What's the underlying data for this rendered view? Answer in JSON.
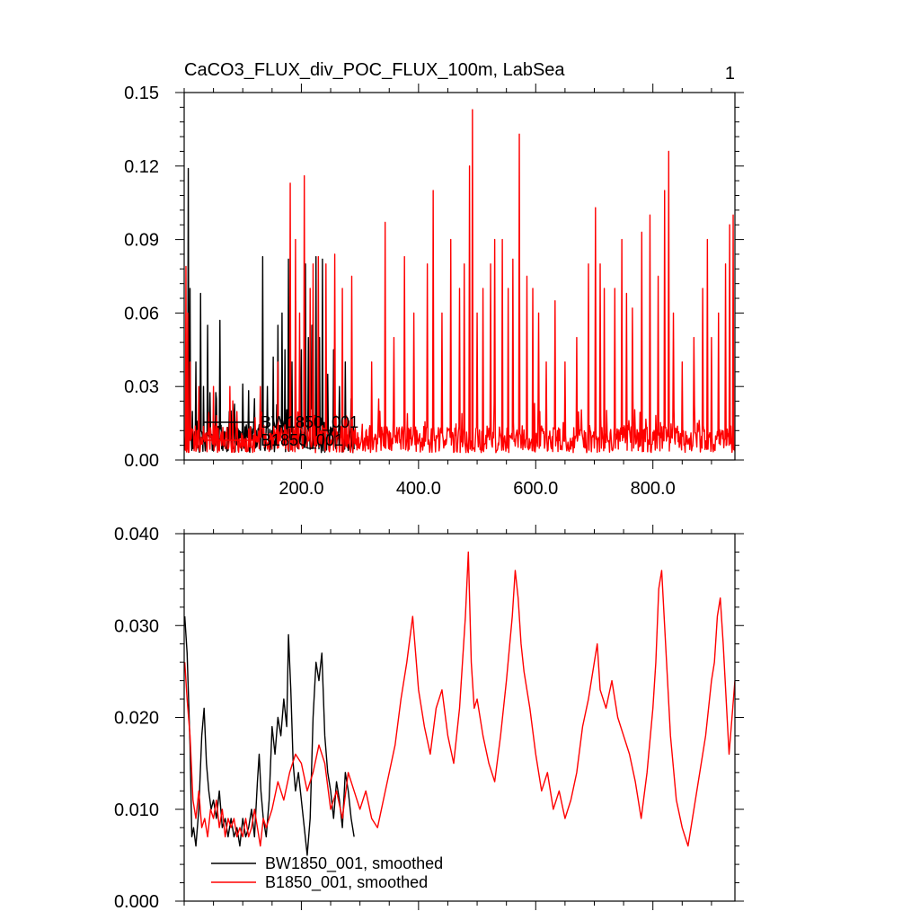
{
  "chart_data": [
    {
      "type": "line",
      "title": "CaCO3_FLUX_div_POC_FLUX_100m, LabSea",
      "page_number": "1",
      "xlim": [
        0,
        940
      ],
      "ylim": [
        0,
        0.15
      ],
      "x_ticks": [
        200,
        400,
        600,
        800
      ],
      "x_tick_labels": [
        "200.0",
        "400.0",
        "600.0",
        "800.0"
      ],
      "y_ticks": [
        0,
        0.03,
        0.06,
        0.09,
        0.12,
        0.15
      ],
      "y_tick_labels": [
        "0.00",
        "0.03",
        "0.06",
        "0.09",
        "0.12",
        "0.15"
      ],
      "legend_position": "lower-left",
      "grid": false,
      "series": [
        {
          "name": "BW1850_001",
          "color": "#000000",
          "x_range": [
            1,
            290
          ],
          "baseline": 0.008,
          "noise": 0.006,
          "peaks": [
            [
              7,
              0.119
            ],
            [
              10,
              0.07
            ],
            [
              20,
              0.04
            ],
            [
              28,
              0.068
            ],
            [
              33,
              0.03
            ],
            [
              40,
              0.055
            ],
            [
              55,
              0.025
            ],
            [
              61,
              0.057
            ],
            [
              80,
              0.02
            ],
            [
              100,
              0.031
            ],
            [
              120,
              0.025
            ],
            [
              134,
              0.083
            ],
            [
              142,
              0.03
            ],
            [
              152,
              0.042
            ],
            [
              160,
              0.055
            ],
            [
              167,
              0.06
            ],
            [
              172,
              0.045
            ],
            [
              178,
              0.082
            ],
            [
              184,
              0.04
            ],
            [
              190,
              0.065
            ],
            [
              200,
              0.045
            ],
            [
              207,
              0.08
            ],
            [
              212,
              0.05
            ],
            [
              218,
              0.055
            ],
            [
              225,
              0.083
            ],
            [
              231,
              0.05
            ],
            [
              236,
              0.082
            ],
            [
              245,
              0.035
            ],
            [
              255,
              0.045
            ],
            [
              265,
              0.03
            ],
            [
              275,
              0.04
            ],
            [
              285,
              0.025
            ]
          ]
        },
        {
          "name": "B1850_001",
          "color": "#ff0000",
          "x_range": [
            1,
            940
          ],
          "baseline": 0.0075,
          "noise": 0.006,
          "peaks": [
            [
              3,
              0.079
            ],
            [
              6,
              0.06
            ],
            [
              10,
              0.04
            ],
            [
              25,
              0.03
            ],
            [
              50,
              0.03
            ],
            [
              78,
              0.03
            ],
            [
              130,
              0.03
            ],
            [
              160,
              0.04
            ],
            [
              181,
              0.113
            ],
            [
              190,
              0.09
            ],
            [
              197,
              0.06
            ],
            [
              205,
              0.116
            ],
            [
              215,
              0.07
            ],
            [
              220,
              0.08
            ],
            [
              229,
              0.083
            ],
            [
              242,
              0.08
            ],
            [
              257,
              0.084
            ],
            [
              270,
              0.07
            ],
            [
              286,
              0.075
            ],
            [
              320,
              0.04
            ],
            [
              343,
              0.097
            ],
            [
              358,
              0.05
            ],
            [
              376,
              0.083
            ],
            [
              392,
              0.06
            ],
            [
              415,
              0.08
            ],
            [
              425,
              0.11
            ],
            [
              440,
              0.06
            ],
            [
              455,
              0.09
            ],
            [
              470,
              0.07
            ],
            [
              478,
              0.08
            ],
            [
              487,
              0.12
            ],
            [
              492,
              0.143
            ],
            [
              500,
              0.06
            ],
            [
              510,
              0.07
            ],
            [
              523,
              0.08
            ],
            [
              530,
              0.09
            ],
            [
              543,
              0.09
            ],
            [
              553,
              0.07
            ],
            [
              561,
              0.082
            ],
            [
              572,
              0.133
            ],
            [
              585,
              0.075
            ],
            [
              595,
              0.07
            ],
            [
              605,
              0.06
            ],
            [
              618,
              0.04
            ],
            [
              633,
              0.065
            ],
            [
              650,
              0.04
            ],
            [
              670,
              0.05
            ],
            [
              690,
              0.08
            ],
            [
              702,
              0.103
            ],
            [
              710,
              0.08
            ],
            [
              717,
              0.07
            ],
            [
              735,
              0.07
            ],
            [
              747,
              0.09
            ],
            [
              755,
              0.068
            ],
            [
              765,
              0.062
            ],
            [
              781,
              0.093
            ],
            [
              795,
              0.1
            ],
            [
              809,
              0.075
            ],
            [
              820,
              0.11
            ],
            [
              827,
              0.126
            ],
            [
              835,
              0.06
            ],
            [
              850,
              0.04
            ],
            [
              870,
              0.05
            ],
            [
              885,
              0.07
            ],
            [
              893,
              0.09
            ],
            [
              900,
              0.05
            ],
            [
              912,
              0.06
            ],
            [
              924,
              0.08
            ],
            [
              931,
              0.096
            ],
            [
              937,
              0.1
            ]
          ]
        }
      ]
    },
    {
      "type": "line",
      "xlim": [
        0,
        940
      ],
      "ylim": [
        0,
        0.04
      ],
      "x_ticks": [
        200,
        400,
        600,
        800
      ],
      "y_ticks": [
        0,
        0.01,
        0.02,
        0.03,
        0.04
      ],
      "y_tick_labels": [
        "0.000",
        "0.010",
        "0.020",
        "0.030",
        "0.040"
      ],
      "legend_position": "lower-left",
      "grid": false,
      "series": [
        {
          "name": "BW1850_001, smoothed",
          "color": "#000000",
          "x": [
            1,
            5,
            10,
            13,
            16,
            20,
            25,
            30,
            34,
            38,
            42,
            46,
            50,
            55,
            60,
            65,
            70,
            75,
            80,
            85,
            90,
            95,
            100,
            105,
            110,
            115,
            120,
            125,
            128,
            131,
            135,
            140,
            145,
            150,
            155,
            160,
            165,
            170,
            175,
            178,
            182,
            186,
            190,
            195,
            200,
            205,
            210,
            215,
            220,
            225,
            230,
            235,
            240,
            245,
            250,
            255,
            260,
            265,
            270,
            275,
            280,
            285,
            290
          ],
          "y": [
            0.031,
            0.027,
            0.017,
            0.007,
            0.008,
            0.006,
            0.01,
            0.018,
            0.021,
            0.015,
            0.012,
            0.01,
            0.011,
            0.009,
            0.012,
            0.008,
            0.009,
            0.007,
            0.009,
            0.007,
            0.008,
            0.006,
            0.009,
            0.007,
            0.008,
            0.01,
            0.007,
            0.013,
            0.016,
            0.012,
            0.009,
            0.007,
            0.011,
            0.019,
            0.016,
            0.02,
            0.018,
            0.022,
            0.019,
            0.029,
            0.023,
            0.015,
            0.012,
            0.014,
            0.011,
            0.008,
            0.005,
            0.009,
            0.02,
            0.026,
            0.024,
            0.027,
            0.018,
            0.014,
            0.012,
            0.009,
            0.013,
            0.011,
            0.008,
            0.014,
            0.012,
            0.009,
            0.007
          ]
        },
        {
          "name": "B1850_001, smoothed",
          "color": "#ff0000",
          "x": [
            1,
            5,
            10,
            15,
            20,
            25,
            30,
            35,
            40,
            45,
            50,
            55,
            60,
            65,
            70,
            75,
            80,
            85,
            90,
            95,
            100,
            105,
            110,
            115,
            120,
            125,
            130,
            135,
            140,
            150,
            160,
            170,
            180,
            190,
            200,
            210,
            220,
            230,
            240,
            250,
            260,
            270,
            280,
            290,
            300,
            310,
            320,
            330,
            340,
            350,
            360,
            370,
            380,
            390,
            400,
            410,
            420,
            430,
            440,
            450,
            460,
            470,
            480,
            485,
            490,
            495,
            500,
            510,
            520,
            530,
            540,
            550,
            560,
            565,
            570,
            575,
            580,
            590,
            600,
            610,
            620,
            630,
            640,
            650,
            660,
            670,
            680,
            690,
            700,
            705,
            710,
            720,
            730,
            740,
            750,
            760,
            770,
            780,
            790,
            800,
            805,
            810,
            815,
            820,
            825,
            830,
            840,
            850,
            860,
            870,
            880,
            890,
            900,
            905,
            910,
            915,
            920,
            925,
            930,
            935,
            940
          ],
          "y": [
            0.026,
            0.022,
            0.018,
            0.011,
            0.009,
            0.012,
            0.008,
            0.009,
            0.007,
            0.01,
            0.009,
            0.011,
            0.008,
            0.01,
            0.007,
            0.009,
            0.008,
            0.009,
            0.007,
            0.008,
            0.007,
            0.009,
            0.007,
            0.008,
            0.01,
            0.008,
            0.006,
            0.009,
            0.008,
            0.01,
            0.013,
            0.011,
            0.014,
            0.016,
            0.015,
            0.012,
            0.014,
            0.017,
            0.015,
            0.01,
            0.012,
            0.009,
            0.014,
            0.012,
            0.01,
            0.012,
            0.009,
            0.008,
            0.011,
            0.014,
            0.017,
            0.022,
            0.026,
            0.031,
            0.023,
            0.019,
            0.016,
            0.021,
            0.023,
            0.018,
            0.015,
            0.021,
            0.031,
            0.038,
            0.026,
            0.021,
            0.022,
            0.018,
            0.015,
            0.013,
            0.018,
            0.024,
            0.031,
            0.036,
            0.033,
            0.028,
            0.025,
            0.021,
            0.016,
            0.012,
            0.014,
            0.01,
            0.012,
            0.009,
            0.011,
            0.014,
            0.019,
            0.022,
            0.026,
            0.028,
            0.023,
            0.021,
            0.024,
            0.02,
            0.018,
            0.016,
            0.013,
            0.009,
            0.014,
            0.021,
            0.026,
            0.034,
            0.036,
            0.03,
            0.024,
            0.018,
            0.011,
            0.008,
            0.006,
            0.01,
            0.014,
            0.018,
            0.024,
            0.026,
            0.031,
            0.033,
            0.028,
            0.022,
            0.016,
            0.02,
            0.024
          ]
        }
      ]
    }
  ]
}
